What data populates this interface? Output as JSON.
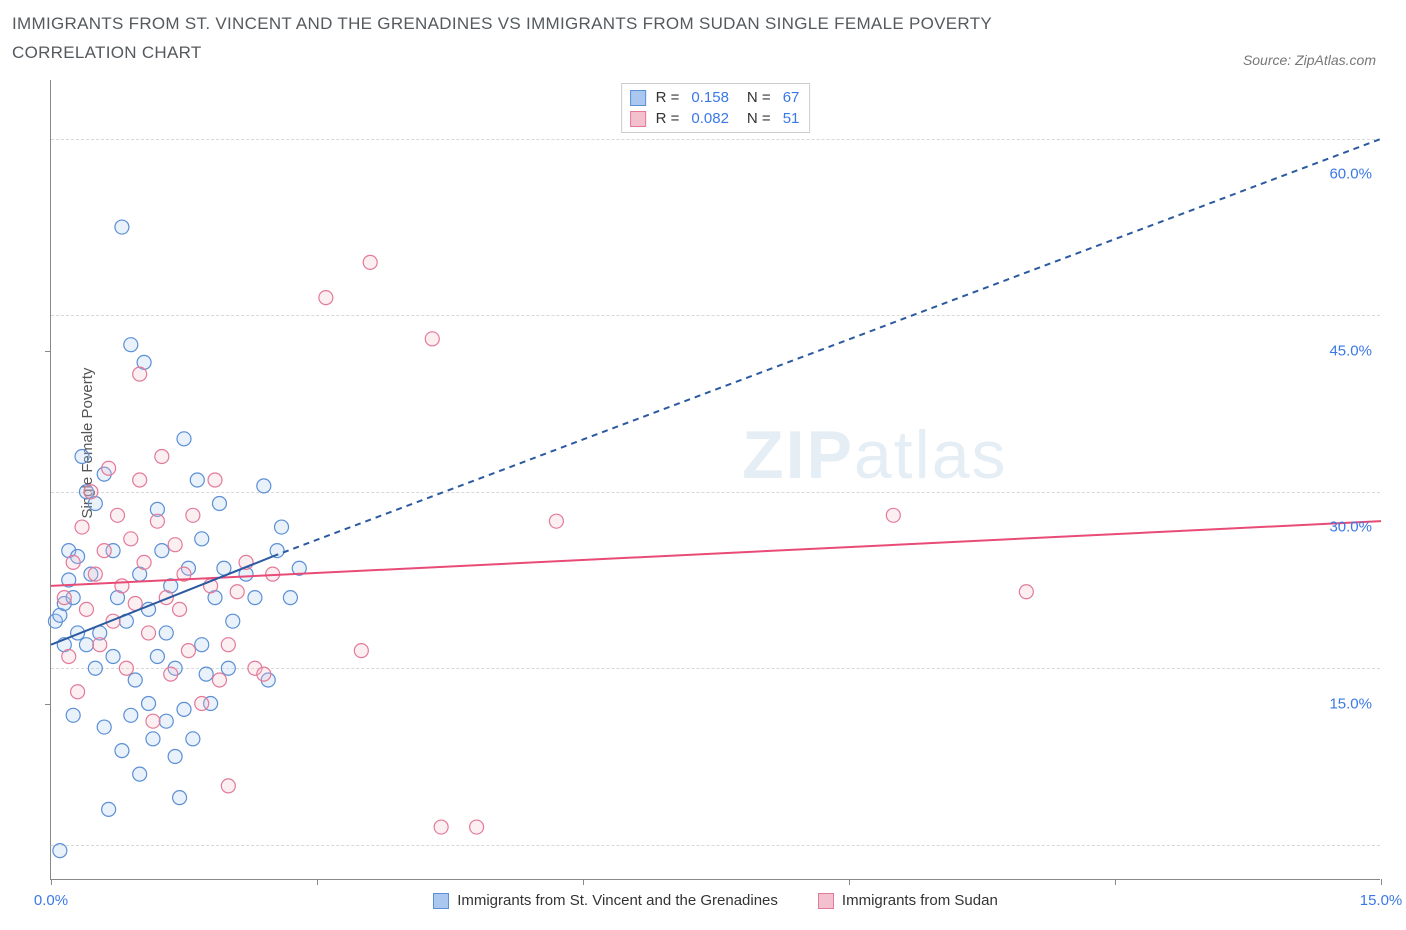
{
  "title": "IMMIGRANTS FROM ST. VINCENT AND THE GRENADINES VS IMMIGRANTS FROM SUDAN SINGLE FEMALE POVERTY CORRELATION CHART",
  "source_label": "Source: ZipAtlas.com",
  "y_axis_label": "Single Female Poverty",
  "watermark": {
    "bold": "ZIP",
    "rest": "atlas"
  },
  "chart": {
    "type": "scatter",
    "xlim": [
      0,
      15
    ],
    "ylim": [
      0,
      68
    ],
    "x_ticks": [
      0,
      3,
      6,
      9,
      12,
      15
    ],
    "x_tick_labels": [
      "0.0%",
      "",
      "",
      "",
      "",
      "15.0%"
    ],
    "y_tick_left": [
      15,
      45
    ],
    "y_grid": [
      3,
      18,
      33,
      48,
      63
    ],
    "y_ticks_right": [
      {
        "v": 15,
        "label": "15.0%"
      },
      {
        "v": 30,
        "label": "30.0%"
      },
      {
        "v": 45,
        "label": "45.0%"
      },
      {
        "v": 60,
        "label": "60.0%"
      }
    ],
    "background_color": "#ffffff",
    "grid_color": "#d8d8d8",
    "axis_color": "#888888",
    "label_fontsize": 15,
    "title_fontsize": 17,
    "marker_radius": 7,
    "marker_stroke_width": 1.2,
    "marker_fill_opacity": 0.25,
    "line_width": 2
  },
  "colors": {
    "series_a_fill": "#a9c7ef",
    "series_a_stroke": "#5b8fd6",
    "series_b_fill": "#f3c0cd",
    "series_b_stroke": "#e37a99",
    "trend_a": "#2c5aa0",
    "trend_b": "#e94b77",
    "x_label": "#3b78e7",
    "y_right_label": "#3b78e7"
  },
  "stats_legend": [
    {
      "swatch_fill": "#a9c7ef",
      "swatch_stroke": "#5b8fd6",
      "r_label": "R =",
      "r_val": "0.158",
      "n_label": "N =",
      "n_val": "67"
    },
    {
      "swatch_fill": "#f3c0cd",
      "swatch_stroke": "#e37a99",
      "r_label": "R =",
      "r_val": "0.082",
      "n_label": "N =",
      "n_val": "51"
    }
  ],
  "series_legend": [
    {
      "swatch_fill": "#a9c7ef",
      "swatch_stroke": "#5b8fd6",
      "label": "Immigrants from St. Vincent and the Grenadines"
    },
    {
      "swatch_fill": "#f3c0cd",
      "swatch_stroke": "#e37a99",
      "label": "Immigrants from Sudan"
    }
  ],
  "trend_lines": {
    "a": {
      "solid": {
        "x1": 0,
        "y1": 20,
        "x2": 2.5,
        "y2": 27.5
      },
      "dashed": {
        "x1": 2.5,
        "y1": 27.5,
        "x2": 15,
        "y2": 63
      },
      "color": "#2c5aa0"
    },
    "b": {
      "solid": {
        "x1": 0,
        "y1": 25,
        "x2": 15,
        "y2": 30.5
      },
      "color": "#e94b77"
    }
  },
  "series_a_points": [
    [
      0.05,
      22
    ],
    [
      0.1,
      2.5
    ],
    [
      0.1,
      22.5
    ],
    [
      0.15,
      20
    ],
    [
      0.15,
      23.5
    ],
    [
      0.2,
      25.5
    ],
    [
      0.2,
      28
    ],
    [
      0.25,
      14
    ],
    [
      0.25,
      24
    ],
    [
      0.3,
      21
    ],
    [
      0.3,
      27.5
    ],
    [
      0.35,
      36
    ],
    [
      0.4,
      20
    ],
    [
      0.4,
      33
    ],
    [
      0.45,
      26
    ],
    [
      0.5,
      18
    ],
    [
      0.5,
      32
    ],
    [
      0.55,
      21
    ],
    [
      0.6,
      13
    ],
    [
      0.6,
      34.5
    ],
    [
      0.65,
      6
    ],
    [
      0.7,
      19
    ],
    [
      0.7,
      28
    ],
    [
      0.75,
      24
    ],
    [
      0.8,
      55.5
    ],
    [
      0.8,
      11
    ],
    [
      0.85,
      22
    ],
    [
      0.9,
      45.5
    ],
    [
      0.9,
      14
    ],
    [
      0.95,
      17
    ],
    [
      1.0,
      26
    ],
    [
      1.0,
      9
    ],
    [
      1.05,
      44
    ],
    [
      1.1,
      15
    ],
    [
      1.1,
      23
    ],
    [
      1.15,
      12
    ],
    [
      1.2,
      31.5
    ],
    [
      1.2,
      19
    ],
    [
      1.25,
      28
    ],
    [
      1.3,
      13.5
    ],
    [
      1.3,
      21
    ],
    [
      1.35,
      25
    ],
    [
      1.4,
      10.5
    ],
    [
      1.4,
      18
    ],
    [
      1.45,
      7
    ],
    [
      1.5,
      37.5
    ],
    [
      1.5,
      14.5
    ],
    [
      1.55,
      26.5
    ],
    [
      1.6,
      12
    ],
    [
      1.65,
      34
    ],
    [
      1.7,
      20
    ],
    [
      1.7,
      29
    ],
    [
      1.75,
      17.5
    ],
    [
      1.8,
      15
    ],
    [
      1.85,
      24
    ],
    [
      1.9,
      32
    ],
    [
      1.95,
      26.5
    ],
    [
      2.0,
      18
    ],
    [
      2.05,
      22
    ],
    [
      2.2,
      26
    ],
    [
      2.3,
      24
    ],
    [
      2.4,
      33.5
    ],
    [
      2.45,
      17
    ],
    [
      2.55,
      28
    ],
    [
      2.6,
      30
    ],
    [
      2.7,
      24
    ],
    [
      2.8,
      26.5
    ]
  ],
  "series_b_points": [
    [
      0.15,
      24
    ],
    [
      0.2,
      19
    ],
    [
      0.25,
      27
    ],
    [
      0.3,
      16
    ],
    [
      0.35,
      30
    ],
    [
      0.4,
      23
    ],
    [
      0.45,
      33
    ],
    [
      0.5,
      26
    ],
    [
      0.55,
      20
    ],
    [
      0.6,
      28
    ],
    [
      0.65,
      35
    ],
    [
      0.7,
      22
    ],
    [
      0.75,
      31
    ],
    [
      0.8,
      25
    ],
    [
      0.85,
      18
    ],
    [
      0.9,
      29
    ],
    [
      0.95,
      23.5
    ],
    [
      1.0,
      34
    ],
    [
      1.0,
      43
    ],
    [
      1.05,
      27
    ],
    [
      1.1,
      21
    ],
    [
      1.15,
      13.5
    ],
    [
      1.2,
      30.5
    ],
    [
      1.25,
      36
    ],
    [
      1.3,
      24
    ],
    [
      1.35,
      17.5
    ],
    [
      1.4,
      28.5
    ],
    [
      1.45,
      23
    ],
    [
      1.5,
      26
    ],
    [
      1.55,
      19.5
    ],
    [
      1.6,
      31
    ],
    [
      1.7,
      15
    ],
    [
      1.8,
      25
    ],
    [
      1.85,
      34
    ],
    [
      1.9,
      17
    ],
    [
      2.0,
      20
    ],
    [
      2.0,
      8
    ],
    [
      2.1,
      24.5
    ],
    [
      2.2,
      27
    ],
    [
      2.3,
      18
    ],
    [
      2.4,
      17.5
    ],
    [
      2.5,
      26
    ],
    [
      3.1,
      49.5
    ],
    [
      3.5,
      19.5
    ],
    [
      3.6,
      52.5
    ],
    [
      4.3,
      46
    ],
    [
      4.4,
      4.5
    ],
    [
      4.8,
      4.5
    ],
    [
      5.7,
      30.5
    ],
    [
      9.5,
      31
    ],
    [
      11.0,
      24.5
    ]
  ]
}
